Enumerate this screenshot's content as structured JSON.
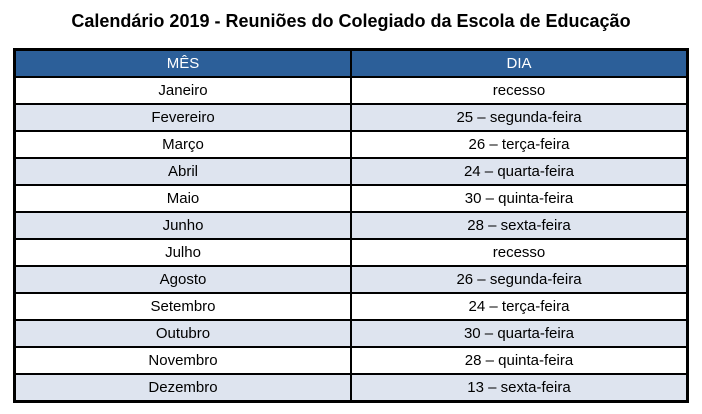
{
  "title": "Calendário 2019 - Reuniões do Colegiado da Escola de Educação",
  "table": {
    "headers": [
      "MÊS",
      "DIA"
    ],
    "rows": [
      [
        "Janeiro",
        "recesso"
      ],
      [
        "Fevereiro",
        "25 – segunda-feira"
      ],
      [
        "Março",
        "26 – terça-feira"
      ],
      [
        "Abril",
        "24 – quarta-feira"
      ],
      [
        "Maio",
        "30 – quinta-feira"
      ],
      [
        "Junho",
        "28 – sexta-feira"
      ],
      [
        "Julho",
        "recesso"
      ],
      [
        "Agosto",
        "26 – segunda-feira"
      ],
      [
        "Setembro",
        "24 – terça-feira"
      ],
      [
        "Outubro",
        "30 – quarta-feira"
      ],
      [
        "Novembro",
        "28 – quinta-feira"
      ],
      [
        "Dezembro",
        "13 – sexta-feira"
      ]
    ]
  },
  "colors": {
    "header_bg": "#2C5F99",
    "header_text": "#FFFFFF",
    "row_bg": "#FFFFFF",
    "row_alt_bg": "#DEE4EF",
    "border": "#000000",
    "title_text": "#000000"
  }
}
